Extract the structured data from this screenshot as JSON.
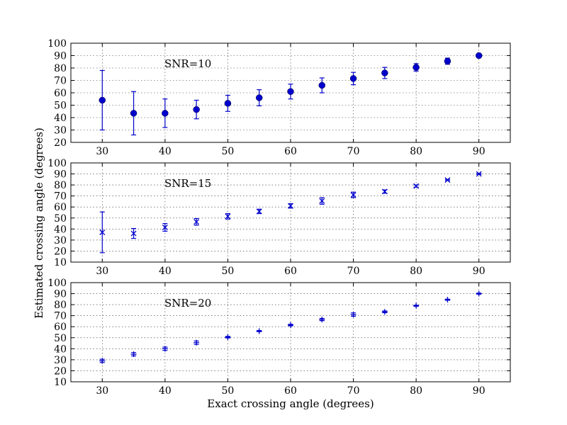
{
  "colors": {
    "series": "#0000cc",
    "frame": "#000000",
    "grid": "#000000",
    "background": "#ffffff"
  },
  "chart_data": {
    "type": "scatter",
    "xlabel": "Exact crossing angle (degrees)",
    "ylabel": "Estimated crossing angle (degrees)",
    "grid": true,
    "shared_x": true,
    "xlim": [
      25,
      95
    ],
    "xticks": [
      30,
      40,
      50,
      60,
      70,
      80,
      90
    ],
    "panels": [
      {
        "annotation": "SNR=10",
        "marker": "circle",
        "ylim": [
          20,
          100
        ],
        "yticks": [
          20,
          30,
          40,
          50,
          60,
          70,
          80,
          90,
          100
        ],
        "points": [
          {
            "x": 30,
            "y": 54,
            "err": 24
          },
          {
            "x": 35,
            "y": 43.5,
            "err": 17.5
          },
          {
            "x": 40,
            "y": 43.5,
            "err": 11.5
          },
          {
            "x": 45,
            "y": 46.5,
            "err": 7.5
          },
          {
            "x": 50,
            "y": 51.5,
            "err": 6.5
          },
          {
            "x": 55,
            "y": 56,
            "err": 6.5
          },
          {
            "x": 60,
            "y": 61,
            "err": 6
          },
          {
            "x": 65,
            "y": 66,
            "err": 6
          },
          {
            "x": 70,
            "y": 71.5,
            "err": 5
          },
          {
            "x": 75,
            "y": 76,
            "err": 4.5
          },
          {
            "x": 80,
            "y": 80.5,
            "err": 3
          },
          {
            "x": 85,
            "y": 85.5,
            "err": 2.5
          },
          {
            "x": 90,
            "y": 90,
            "err": 1
          }
        ]
      },
      {
        "annotation": "SNR=15",
        "marker": "x",
        "ylim": [
          10,
          100
        ],
        "yticks": [
          10,
          20,
          30,
          40,
          50,
          60,
          70,
          80,
          90,
          100
        ],
        "points": [
          {
            "x": 30,
            "y": 37,
            "err": 18.5
          },
          {
            "x": 35,
            "y": 36,
            "err": 4.5
          },
          {
            "x": 40,
            "y": 41.5,
            "err": 3.5
          },
          {
            "x": 45,
            "y": 46.5,
            "err": 3
          },
          {
            "x": 50,
            "y": 51.5,
            "err": 2.5
          },
          {
            "x": 55,
            "y": 56,
            "err": 2
          },
          {
            "x": 60,
            "y": 61,
            "err": 2
          },
          {
            "x": 65,
            "y": 65.5,
            "err": 3
          },
          {
            "x": 70,
            "y": 71,
            "err": 2.5
          },
          {
            "x": 75,
            "y": 74,
            "err": 1.5
          },
          {
            "x": 80,
            "y": 79,
            "err": 1
          },
          {
            "x": 85,
            "y": 84.5,
            "err": 0.5
          },
          {
            "x": 90,
            "y": 90,
            "err": 0.5
          }
        ]
      },
      {
        "annotation": "SNR=20",
        "marker": "plus",
        "ylim": [
          10,
          100
        ],
        "yticks": [
          10,
          20,
          30,
          40,
          50,
          60,
          70,
          80,
          90,
          100
        ],
        "points": [
          {
            "x": 30,
            "y": 29,
            "err": 1.5
          },
          {
            "x": 35,
            "y": 35,
            "err": 1.5
          },
          {
            "x": 40,
            "y": 40,
            "err": 1.5
          },
          {
            "x": 45,
            "y": 45.5,
            "err": 1.5
          },
          {
            "x": 50,
            "y": 50.5,
            "err": 0.7
          },
          {
            "x": 55,
            "y": 56,
            "err": 0.5
          },
          {
            "x": 60,
            "y": 61.5,
            "err": 0.7
          },
          {
            "x": 65,
            "y": 66.5,
            "err": 1
          },
          {
            "x": 70,
            "y": 71,
            "err": 1.5
          },
          {
            "x": 75,
            "y": 73.5,
            "err": 0.8
          },
          {
            "x": 80,
            "y": 79,
            "err": 0.5
          },
          {
            "x": 85,
            "y": 84.5,
            "err": 0.5
          },
          {
            "x": 90,
            "y": 90,
            "err": 0.5
          }
        ]
      }
    ]
  }
}
